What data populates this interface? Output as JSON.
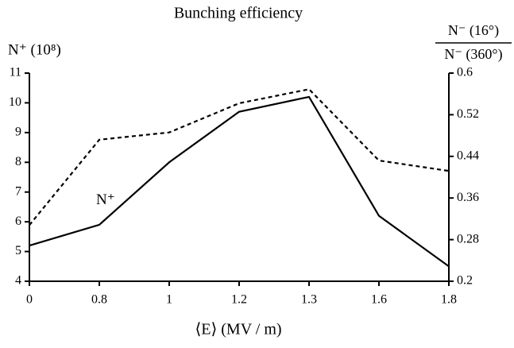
{
  "chart_data": {
    "type": "line",
    "title": "Bunching efficiency",
    "ylabel": "N⁺ (10⁸)",
    "y2label": {
      "numerator": "N⁻ (16°)",
      "denominator": "N⁻ (360°)"
    },
    "xlabel": "⟨E⟩ (MV / m)",
    "categories": [
      "0",
      "0.8",
      "1",
      "1.2",
      "1.3",
      "1.6",
      "1.8"
    ],
    "series": [
      {
        "name": "N⁺",
        "color": "#000000",
        "style": "solid",
        "values": [
          5.2,
          5.9,
          8.0,
          9.7,
          10.2,
          6.2,
          4.5
        ]
      },
      {
        "color": "#000000",
        "style": "dashed",
        "axis": "y2",
        "values": [
          0.308,
          0.472,
          0.486,
          0.542,
          0.569,
          0.432,
          0.412
        ]
      }
    ],
    "ylim": [
      4,
      11
    ],
    "yticks": [
      4,
      5,
      6,
      7,
      8,
      9,
      10,
      11
    ],
    "y2lim": [
      0.2,
      0.6
    ],
    "y2ticks": [
      0.2,
      0.28,
      0.36,
      0.44,
      0.52,
      0.6
    ]
  }
}
